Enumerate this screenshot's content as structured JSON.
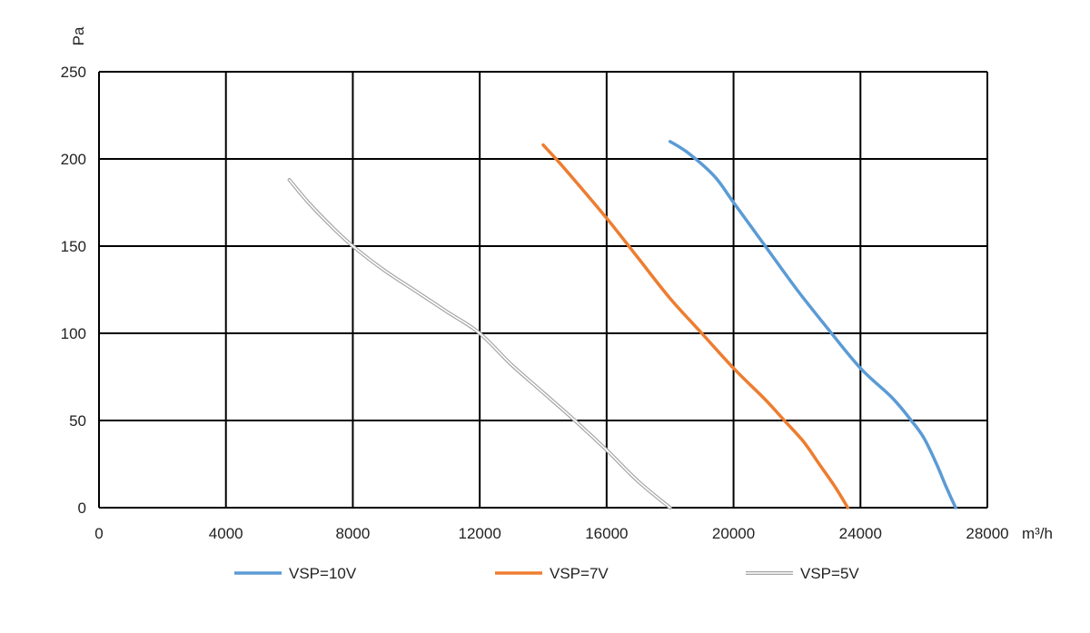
{
  "chart_data": {
    "type": "line",
    "xlabel": "m³/h",
    "ylabel": "Pa",
    "xlim": [
      0,
      28000
    ],
    "ylim": [
      0,
      250
    ],
    "xticks": [
      0,
      4000,
      8000,
      12000,
      16000,
      20000,
      24000,
      28000
    ],
    "yticks": [
      0,
      50,
      100,
      150,
      200,
      250
    ],
    "xtick_labels": [
      "0",
      "4000",
      "8000",
      "12000",
      "16000",
      "20000",
      "24000",
      "28000"
    ],
    "ytick_labels": [
      "0",
      "50",
      "100",
      "150",
      "200",
      "250"
    ],
    "grid": true,
    "legend_position": "bottom",
    "series": [
      {
        "name": "VSP=10V",
        "color": "#5b9bd5",
        "style": "solid",
        "x": [
          18000,
          18600,
          19400,
          20000,
          21000,
          22000,
          23000,
          24000,
          25000,
          25600,
          26000,
          26400,
          26700,
          27000
        ],
        "y": [
          210,
          203,
          190,
          175,
          150,
          125,
          102,
          80,
          63,
          50,
          40,
          25,
          12,
          0
        ]
      },
      {
        "name": "VSP=7V",
        "color": "#ed7d31",
        "style": "solid",
        "x": [
          14000,
          14600,
          16000,
          17000,
          18000,
          19000,
          20000,
          21000,
          21600,
          22200,
          22700,
          23200,
          23600
        ],
        "y": [
          208,
          196,
          166,
          143,
          120,
          100,
          80,
          62,
          50,
          38,
          25,
          12,
          0
        ]
      },
      {
        "name": "VSP=5V",
        "color": "#a6a6a6",
        "style": "double",
        "x": [
          6000,
          6600,
          7400,
          8000,
          9000,
          10000,
          11000,
          12000,
          13000,
          14000,
          15000,
          16000,
          17000,
          18000
        ],
        "y": [
          188,
          175,
          160,
          150,
          136,
          124,
          112,
          100,
          82,
          66,
          50,
          33,
          15,
          0
        ]
      }
    ]
  }
}
